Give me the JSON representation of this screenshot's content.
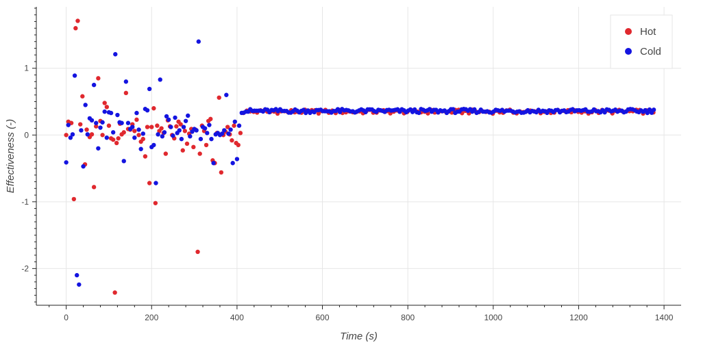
{
  "chart_data": {
    "type": "scatter",
    "xlabel": "Time (s)",
    "ylabel": "Effectiveness (-)",
    "xlim": [
      -70,
      1440
    ],
    "ylim": [
      -2.55,
      1.92
    ],
    "xticks": [
      0,
      200,
      400,
      600,
      800,
      1000,
      1200,
      1400
    ],
    "xtick_labels": [
      "0",
      "200",
      "400",
      "600",
      "800",
      "1000",
      "1200",
      "1400"
    ],
    "yticks": [
      -2,
      -1,
      0,
      1
    ],
    "ytick_labels": [
      "-2",
      "-1",
      "0",
      "1"
    ],
    "grid": true,
    "legend_position": "top-right",
    "series": [
      {
        "name": "Hot",
        "color": "#e0282e",
        "points": [
          [
            0,
            0.0
          ],
          [
            5,
            0.2
          ],
          [
            12,
            0.18
          ],
          [
            18,
            -0.96
          ],
          [
            22,
            1.6
          ],
          [
            27,
            1.71
          ],
          [
            33,
            0.16
          ],
          [
            38,
            0.58
          ],
          [
            44,
            -0.44
          ],
          [
            48,
            0.08
          ],
          [
            55,
            -0.03
          ],
          [
            60,
            0.01
          ],
          [
            65,
            -0.78
          ],
          [
            70,
            0.13
          ],
          [
            75,
            0.85
          ],
          [
            80,
            0.21
          ],
          [
            85,
            0.0
          ],
          [
            90,
            0.48
          ],
          [
            95,
            0.42
          ],
          [
            100,
            0.14
          ],
          [
            105,
            -0.05
          ],
          [
            110,
            -0.07
          ],
          [
            114,
            -2.36
          ],
          [
            118,
            -0.12
          ],
          [
            122,
            -0.05
          ],
          [
            126,
            0.17
          ],
          [
            130,
            0.01
          ],
          [
            135,
            0.04
          ],
          [
            140,
            0.63
          ],
          [
            145,
            0.09
          ],
          [
            150,
            0.08
          ],
          [
            155,
            0.16
          ],
          [
            160,
            0.06
          ],
          [
            165,
            0.23
          ],
          [
            170,
            0.0
          ],
          [
            175,
            -0.1
          ],
          [
            180,
            -0.06
          ],
          [
            185,
            -0.32
          ],
          [
            190,
            0.12
          ],
          [
            195,
            -0.72
          ],
          [
            200,
            0.12
          ],
          [
            205,
            0.4
          ],
          [
            209,
            -1.02
          ],
          [
            213,
            0.14
          ],
          [
            218,
            0.06
          ],
          [
            223,
            0.1
          ],
          [
            228,
            0.03
          ],
          [
            233,
            -0.28
          ],
          [
            238,
            0.22
          ],
          [
            243,
            0.13
          ],
          [
            248,
            0.0
          ],
          [
            253,
            -0.05
          ],
          [
            258,
            0.13
          ],
          [
            263,
            0.2
          ],
          [
            268,
            0.16
          ],
          [
            273,
            -0.23
          ],
          [
            278,
            0.06
          ],
          [
            283,
            -0.13
          ],
          [
            288,
            0.02
          ],
          [
            293,
            0.09
          ],
          [
            298,
            -0.18
          ],
          [
            303,
            0.08
          ],
          [
            308,
            -1.75
          ],
          [
            313,
            -0.28
          ],
          [
            318,
            0.14
          ],
          [
            323,
            0.06
          ],
          [
            328,
            -0.15
          ],
          [
            333,
            0.21
          ],
          [
            338,
            0.24
          ],
          [
            343,
            -0.38
          ],
          [
            348,
            -0.42
          ],
          [
            353,
            0.03
          ],
          [
            358,
            0.56
          ],
          [
            363,
            -0.56
          ],
          [
            368,
            0.0
          ],
          [
            373,
            0.05
          ],
          [
            378,
            0.12
          ],
          [
            383,
            0.01
          ],
          [
            388,
            -0.08
          ],
          [
            393,
            0.14
          ],
          [
            398,
            -0.12
          ],
          [
            403,
            -0.15
          ],
          [
            408,
            0.03
          ]
        ],
        "steady_segment": {
          "x_start": 415,
          "x_end": 1375,
          "x_step": 8,
          "mean": 0.35,
          "band": 0.03
        }
      },
      {
        "name": "Cold",
        "color": "#1414e0",
        "points": [
          [
            0,
            -0.41
          ],
          [
            5,
            0.15
          ],
          [
            10,
            -0.04
          ],
          [
            15,
            0.01
          ],
          [
            20,
            0.89
          ],
          [
            25,
            -2.1
          ],
          [
            30,
            -2.24
          ],
          [
            35,
            0.07
          ],
          [
            40,
            -0.47
          ],
          [
            45,
            0.45
          ],
          [
            50,
            0.01
          ],
          [
            55,
            0.25
          ],
          [
            60,
            0.22
          ],
          [
            65,
            0.75
          ],
          [
            70,
            0.18
          ],
          [
            75,
            -0.2
          ],
          [
            80,
            0.11
          ],
          [
            85,
            0.19
          ],
          [
            90,
            0.35
          ],
          [
            95,
            -0.04
          ],
          [
            100,
            0.34
          ],
          [
            105,
            0.33
          ],
          [
            110,
            0.04
          ],
          [
            115,
            1.21
          ],
          [
            120,
            0.3
          ],
          [
            125,
            0.19
          ],
          [
            130,
            0.18
          ],
          [
            135,
            -0.39
          ],
          [
            140,
            0.8
          ],
          [
            145,
            0.18
          ],
          [
            150,
            0.09
          ],
          [
            155,
            0.12
          ],
          [
            160,
            -0.04
          ],
          [
            165,
            0.33
          ],
          [
            170,
            0.08
          ],
          [
            175,
            -0.21
          ],
          [
            180,
            0.02
          ],
          [
            185,
            0.39
          ],
          [
            190,
            0.37
          ],
          [
            195,
            0.69
          ],
          [
            200,
            -0.18
          ],
          [
            205,
            -0.15
          ],
          [
            210,
            -0.72
          ],
          [
            215,
            0.01
          ],
          [
            220,
            0.83
          ],
          [
            225,
            -0.02
          ],
          [
            230,
            0.04
          ],
          [
            235,
            0.28
          ],
          [
            240,
            0.23
          ],
          [
            245,
            0.12
          ],
          [
            250,
            -0.01
          ],
          [
            255,
            0.26
          ],
          [
            260,
            0.03
          ],
          [
            265,
            0.07
          ],
          [
            270,
            -0.06
          ],
          [
            275,
            0.12
          ],
          [
            280,
            0.21
          ],
          [
            285,
            0.29
          ],
          [
            290,
            -0.02
          ],
          [
            295,
            0.05
          ],
          [
            300,
            0.09
          ],
          [
            305,
            0.07
          ],
          [
            310,
            1.4
          ],
          [
            315,
            -0.06
          ],
          [
            320,
            0.12
          ],
          [
            325,
            0.1
          ],
          [
            330,
            0.03
          ],
          [
            335,
            0.15
          ],
          [
            340,
            -0.06
          ],
          [
            345,
            -0.42
          ],
          [
            350,
            0.01
          ],
          [
            355,
            0.03
          ],
          [
            360,
            0.0
          ],
          [
            365,
            0.02
          ],
          [
            370,
            0.07
          ],
          [
            375,
            0.6
          ],
          [
            380,
            0.02
          ],
          [
            385,
            0.08
          ],
          [
            390,
            -0.42
          ],
          [
            395,
            0.2
          ],
          [
            400,
            -0.36
          ],
          [
            405,
            0.14
          ]
        ],
        "steady_segment": {
          "x_start": 411,
          "x_end": 1378,
          "x_step": 5,
          "mean": 0.36,
          "band": 0.03
        }
      }
    ]
  }
}
